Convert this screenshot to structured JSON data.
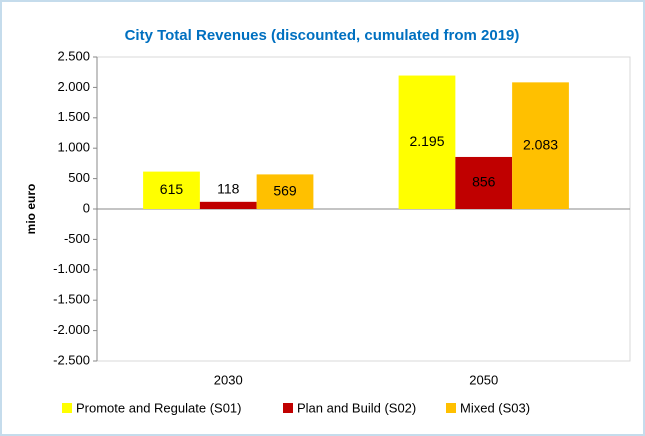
{
  "chart_data": {
    "type": "bar",
    "title": "City Total Revenues (discounted, cumulated from 2019)",
    "ylabel": "mio euro",
    "categories": [
      "2030",
      "2050"
    ],
    "series": [
      {
        "name": "Promote and Regulate (S01)",
        "color": "#ffff00",
        "values": [
          615,
          2195
        ],
        "value_labels": [
          "615",
          "2.195"
        ]
      },
      {
        "name": "Plan and Build (S02)",
        "color": "#c00000",
        "values": [
          118,
          856
        ],
        "value_labels": [
          "118",
          "856"
        ]
      },
      {
        "name": "Mixed (S03)",
        "color": "#ffc000",
        "values": [
          569,
          2083
        ],
        "value_labels": [
          "569",
          "2.083"
        ]
      }
    ],
    "ylim": [
      -2500,
      2500
    ],
    "yticks": [
      {
        "value": -2500,
        "label": "-2.500"
      },
      {
        "value": -2000,
        "label": "-2.000"
      },
      {
        "value": -1500,
        "label": "-1.500"
      },
      {
        "value": -1000,
        "label": "-1.000"
      },
      -500,
      0,
      500,
      {
        "value": 1000,
        "label": "1.000"
      },
      {
        "value": 1500,
        "label": "1.500"
      },
      {
        "value": 2000,
        "label": "2.000"
      },
      {
        "value": 2500,
        "label": "2.500"
      }
    ],
    "grid": false,
    "legend": "bottom"
  }
}
